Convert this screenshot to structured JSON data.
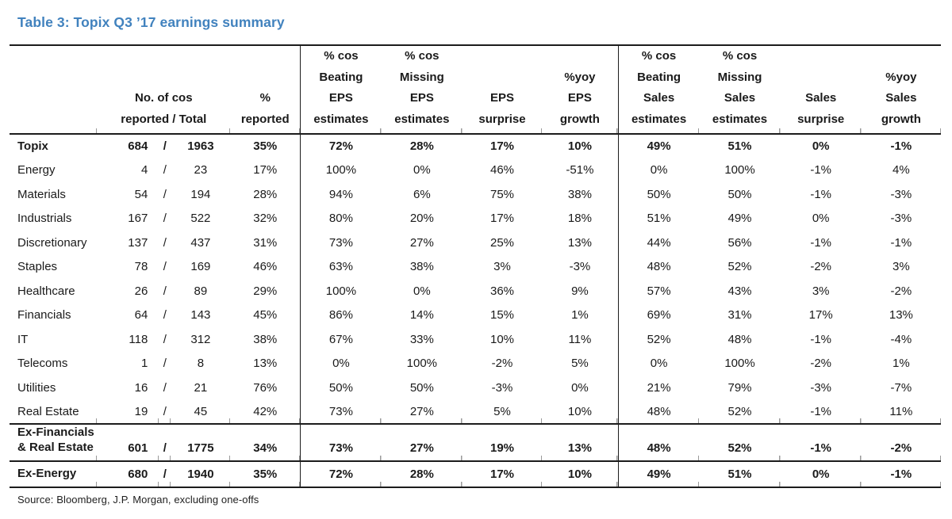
{
  "title": "Table 3: Topix Q3 ’17 earnings summary",
  "source": "Source: Bloomberg, J.P. Morgan, excluding one-offs",
  "colors": {
    "title_blue": "#4182be",
    "rule": "#1c1c1c",
    "tick_gray": "#9a9a9a"
  },
  "slash_separator": "/",
  "header": {
    "cos_header": [
      "No. of cos",
      "reported / Total"
    ],
    "pct_header": [
      "%",
      "reported"
    ],
    "eps_headers": [
      [
        "% cos",
        "Beating",
        "EPS",
        "estimates"
      ],
      [
        "% cos",
        "Missing",
        "EPS",
        "estimates"
      ],
      [
        "",
        "",
        "EPS",
        "surprise"
      ],
      [
        "",
        "%yoy",
        "EPS",
        "growth"
      ]
    ],
    "sales_headers": [
      [
        "% cos",
        "Beating",
        "Sales",
        "estimates"
      ],
      [
        "% cos",
        "Missing",
        "Sales",
        "estimates"
      ],
      [
        "",
        "",
        "Sales",
        "surprise"
      ],
      [
        "",
        "%yoy",
        "Sales",
        "growth"
      ]
    ]
  },
  "rows": [
    {
      "label": "Topix",
      "bold": true,
      "reported": "684",
      "total": "1963",
      "pct_reported": "35%",
      "eps": [
        "72%",
        "28%",
        "17%",
        "10%"
      ],
      "sales": [
        "49%",
        "51%",
        "0%",
        "-1%"
      ]
    },
    {
      "label": "Energy",
      "bold": false,
      "reported": "4",
      "total": "23",
      "pct_reported": "17%",
      "eps": [
        "100%",
        "0%",
        "46%",
        "-51%"
      ],
      "sales": [
        "0%",
        "100%",
        "-1%",
        "4%"
      ]
    },
    {
      "label": "Materials",
      "bold": false,
      "reported": "54",
      "total": "194",
      "pct_reported": "28%",
      "eps": [
        "94%",
        "6%",
        "75%",
        "38%"
      ],
      "sales": [
        "50%",
        "50%",
        "-1%",
        "-3%"
      ]
    },
    {
      "label": "Industrials",
      "bold": false,
      "reported": "167",
      "total": "522",
      "pct_reported": "32%",
      "eps": [
        "80%",
        "20%",
        "17%",
        "18%"
      ],
      "sales": [
        "51%",
        "49%",
        "0%",
        "-3%"
      ]
    },
    {
      "label": "Discretionary",
      "bold": false,
      "reported": "137",
      "total": "437",
      "pct_reported": "31%",
      "eps": [
        "73%",
        "27%",
        "25%",
        "13%"
      ],
      "sales": [
        "44%",
        "56%",
        "-1%",
        "-1%"
      ]
    },
    {
      "label": "Staples",
      "bold": false,
      "reported": "78",
      "total": "169",
      "pct_reported": "46%",
      "eps": [
        "63%",
        "38%",
        "3%",
        "-3%"
      ],
      "sales": [
        "48%",
        "52%",
        "-2%",
        "3%"
      ]
    },
    {
      "label": "Healthcare",
      "bold": false,
      "reported": "26",
      "total": "89",
      "pct_reported": "29%",
      "eps": [
        "100%",
        "0%",
        "36%",
        "9%"
      ],
      "sales": [
        "57%",
        "43%",
        "3%",
        "-2%"
      ]
    },
    {
      "label": "Financials",
      "bold": false,
      "reported": "64",
      "total": "143",
      "pct_reported": "45%",
      "eps": [
        "86%",
        "14%",
        "15%",
        "1%"
      ],
      "sales": [
        "69%",
        "31%",
        "17%",
        "13%"
      ]
    },
    {
      "label": "IT",
      "bold": false,
      "reported": "118",
      "total": "312",
      "pct_reported": "38%",
      "eps": [
        "67%",
        "33%",
        "10%",
        "11%"
      ],
      "sales": [
        "52%",
        "48%",
        "-1%",
        "-4%"
      ]
    },
    {
      "label": "Telecoms",
      "bold": false,
      "reported": "1",
      "total": "8",
      "pct_reported": "13%",
      "eps": [
        "0%",
        "100%",
        "-2%",
        "5%"
      ],
      "sales": [
        "0%",
        "100%",
        "-2%",
        "1%"
      ]
    },
    {
      "label": "Utilities",
      "bold": false,
      "reported": "16",
      "total": "21",
      "pct_reported": "76%",
      "eps": [
        "50%",
        "50%",
        "-3%",
        "0%"
      ],
      "sales": [
        "21%",
        "79%",
        "-3%",
        "-7%"
      ]
    },
    {
      "label": "Real Estate",
      "bold": false,
      "reported": "19",
      "total": "45",
      "pct_reported": "42%",
      "eps": [
        "73%",
        "27%",
        "5%",
        "10%"
      ],
      "sales": [
        "48%",
        "52%",
        "-1%",
        "11%"
      ]
    }
  ],
  "summary_rows": [
    {
      "label_lines": [
        "Ex-Financials",
        "& Real Estate"
      ],
      "bold": true,
      "reported": "601",
      "total": "1775",
      "pct_reported": "34%",
      "eps": [
        "73%",
        "27%",
        "19%",
        "13%"
      ],
      "sales": [
        "48%",
        "52%",
        "-1%",
        "-2%"
      ]
    },
    {
      "label_lines": [
        "Ex-Energy"
      ],
      "bold": true,
      "reported": "680",
      "total": "1940",
      "pct_reported": "35%",
      "eps": [
        "72%",
        "28%",
        "17%",
        "10%"
      ],
      "sales": [
        "49%",
        "51%",
        "0%",
        "-1%"
      ]
    }
  ]
}
